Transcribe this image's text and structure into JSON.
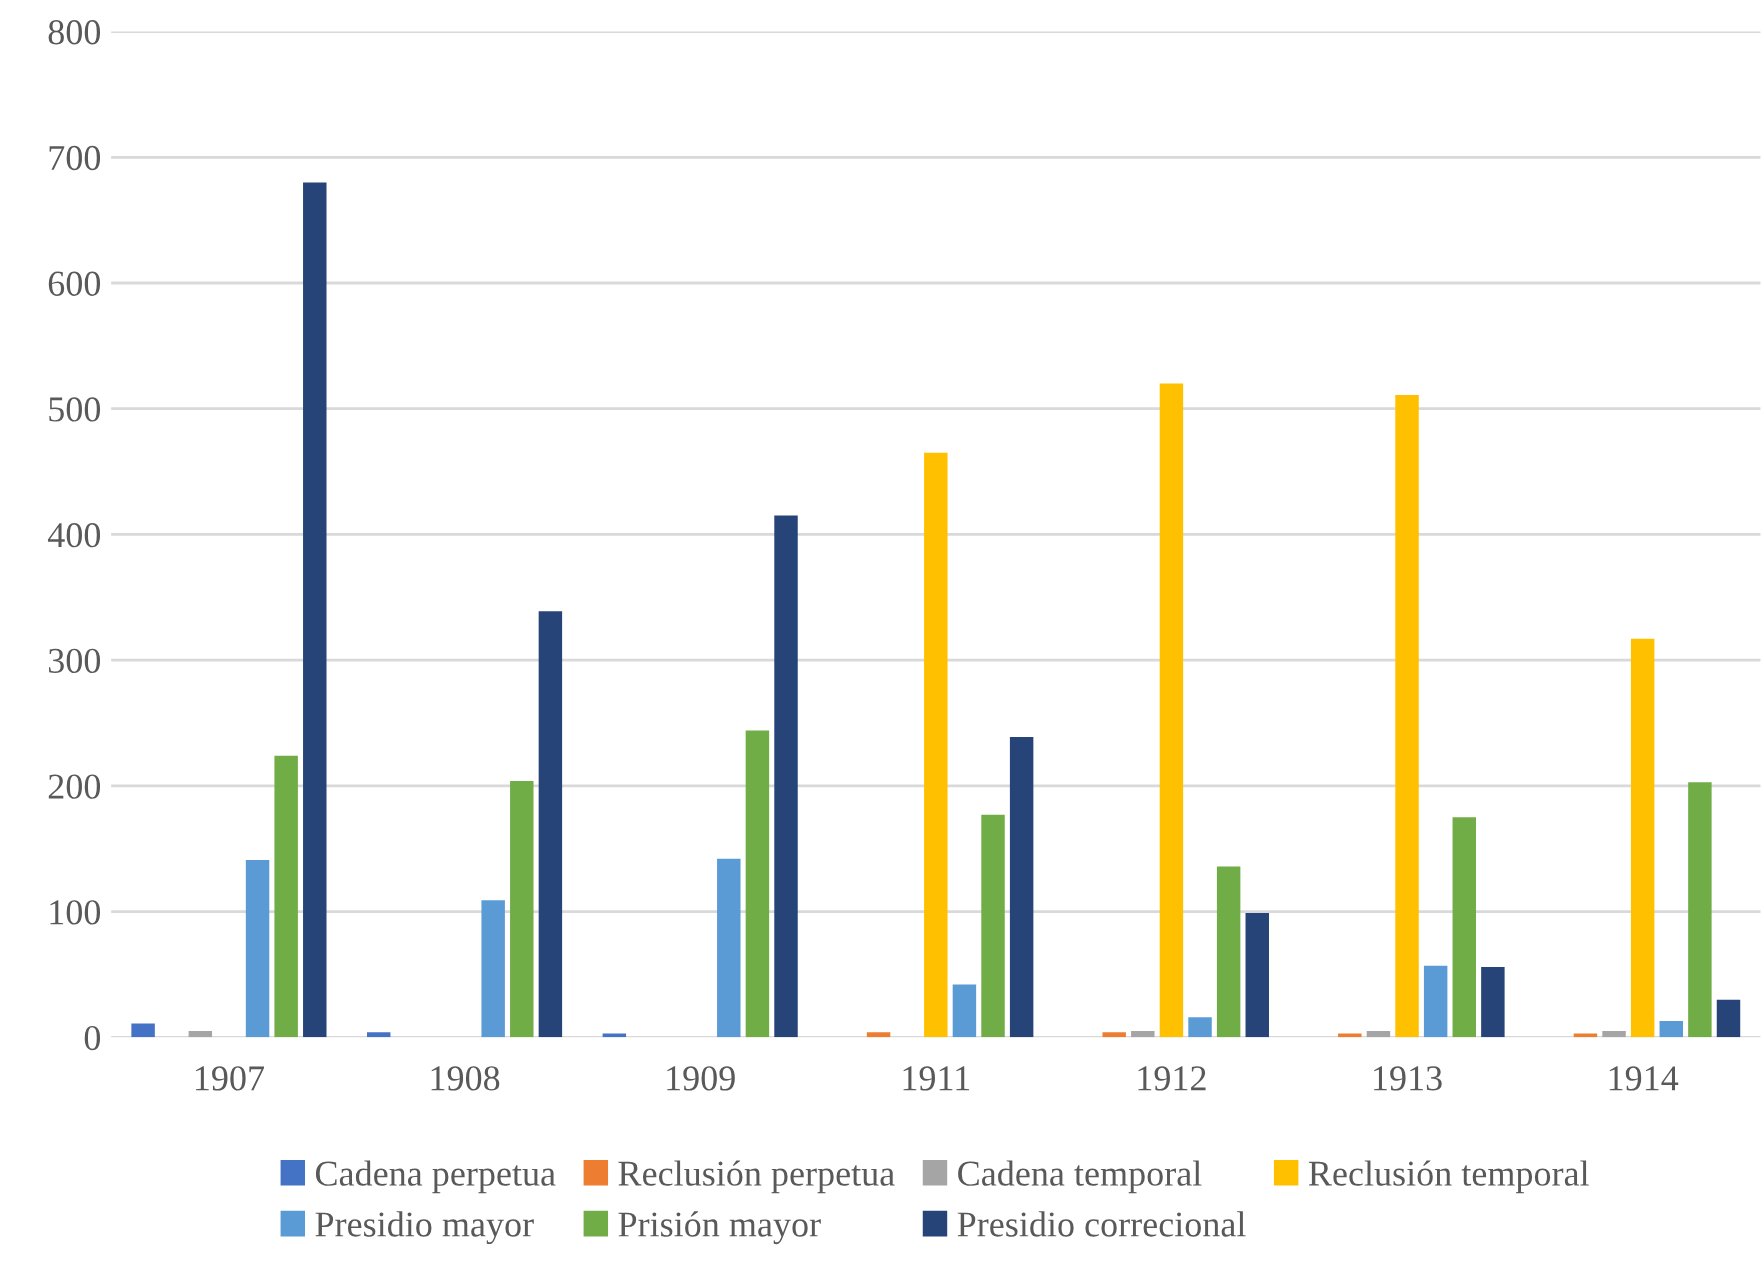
{
  "chart_data": {
    "type": "bar",
    "categories": [
      "1907",
      "1908",
      "1909",
      "1911",
      "1912",
      "1913",
      "1914"
    ],
    "series": [
      {
        "name": "Cadena perpetua",
        "color": "#4472c4",
        "values": [
          11,
          4,
          3,
          0,
          0,
          0,
          0
        ]
      },
      {
        "name": "Reclusión perpetua",
        "color": "#ed7d31",
        "values": [
          0,
          0,
          0,
          4,
          4,
          3,
          3
        ]
      },
      {
        "name": "Cadena temporal",
        "color": "#a5a5a5",
        "values": [
          5,
          null,
          null,
          0,
          5,
          5,
          5
        ]
      },
      {
        "name": "Reclusión temporal",
        "color": "#ffc000",
        "values": [
          0,
          0,
          0,
          465,
          520,
          511,
          317
        ]
      },
      {
        "name": "Presidio mayor",
        "color": "#5b9bd5",
        "values": [
          141,
          109,
          142,
          42,
          16,
          57,
          13
        ]
      },
      {
        "name": "Prisión mayor",
        "color": "#70ad47",
        "values": [
          224,
          204,
          244,
          177,
          136,
          175,
          203
        ]
      },
      {
        "name": "Presidio correcional",
        "color": "#264478",
        "values": [
          680,
          339,
          415,
          239,
          99,
          56,
          30
        ]
      }
    ],
    "ylim": [
      0,
      800
    ],
    "yticks": [
      0,
      100,
      200,
      300,
      400,
      500,
      600,
      700,
      800
    ],
    "grid": "y",
    "legend": "bottom"
  }
}
